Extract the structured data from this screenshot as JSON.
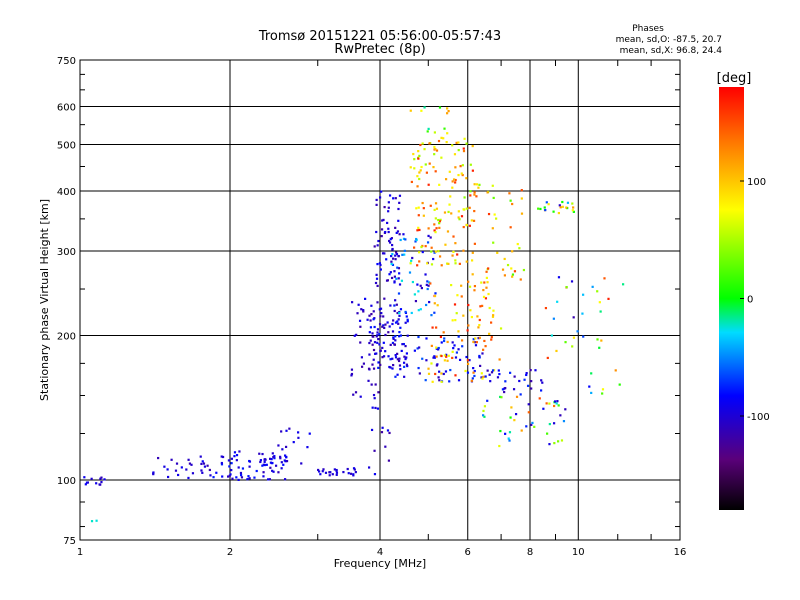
{
  "chart_data": {
    "type": "scatter",
    "title": "Tromsø 20151221 05:56:00-05:57:43",
    "subtitle": "RwPretec (8p)",
    "xlabel": "Frequency [MHz]",
    "ylabel": "Stationary phase Virtual Height [km]",
    "x_scale": "log",
    "y_scale": "log",
    "xlim": [
      1,
      16
    ],
    "ylim": [
      75,
      750
    ],
    "x_ticks": [
      1,
      2,
      4,
      6,
      8,
      10,
      16
    ],
    "y_ticks": [
      75,
      100,
      200,
      300,
      400,
      500,
      600,
      750
    ],
    "grid": true,
    "stats": {
      "heading": "Phases",
      "line_o": "mean, sd,O: -87.5, 20.7",
      "line_x": "mean, sd,X:  96.8, 24.4"
    },
    "colorbar": {
      "label": "[deg]",
      "range": [
        -180,
        180
      ],
      "ticks": [
        100,
        0,
        -100
      ],
      "tick_labels": [
        "100",
        "0",
        "-100"
      ]
    },
    "clusters": [
      {
        "f": [
          1.0,
          1.12
        ],
        "h": [
          97,
          102
        ],
        "phase": [
          -115,
          -80
        ],
        "n": 12
      },
      {
        "f": [
          1.05,
          1.08
        ],
        "h": [
          80,
          85
        ],
        "phase": [
          -40,
          -20
        ],
        "n": 2
      },
      {
        "f": [
          1.4,
          1.85
        ],
        "h": [
          100,
          112
        ],
        "phase": [
          -115,
          -85
        ],
        "n": 28
      },
      {
        "f": [
          1.85,
          2.6
        ],
        "h": [
          100,
          115
        ],
        "phase": [
          -115,
          -75
        ],
        "n": 70
      },
      {
        "f": [
          2.4,
          2.9
        ],
        "h": [
          108,
          130
        ],
        "phase": [
          -110,
          -80
        ],
        "n": 20
      },
      {
        "f": [
          3.0,
          3.6
        ],
        "h": [
          102,
          106
        ],
        "phase": [
          -110,
          -90
        ],
        "n": 24
      },
      {
        "f": [
          3.5,
          4.0
        ],
        "h": [
          140,
          240
        ],
        "phase": [
          -120,
          -85
        ],
        "n": 45
      },
      {
        "f": [
          3.8,
          4.6
        ],
        "h": [
          170,
          230
        ],
        "phase": [
          -120,
          -75
        ],
        "n": 90
      },
      {
        "f": [
          3.9,
          4.4
        ],
        "h": [
          230,
          400
        ],
        "phase": [
          -120,
          -80
        ],
        "n": 70
      },
      {
        "f": [
          4.2,
          5.2
        ],
        "h": [
          220,
          330
        ],
        "phase": [
          -115,
          -20
        ],
        "n": 60
      },
      {
        "f": [
          4.6,
          6.2
        ],
        "h": [
          280,
          520
        ],
        "phase": [
          40,
          170
        ],
        "n": 140
      },
      {
        "f": [
          4.2,
          6.5
        ],
        "h": [
          160,
          200
        ],
        "phase": [
          -115,
          -60
        ],
        "n": 70
      },
      {
        "f": [
          5.0,
          7.0
        ],
        "h": [
          160,
          260
        ],
        "phase": [
          60,
          170
        ],
        "n": 90
      },
      {
        "f": [
          6.0,
          7.8
        ],
        "h": [
          260,
          420
        ],
        "phase": [
          20,
          160
        ],
        "n": 45
      },
      {
        "f": [
          6.5,
          8.5
        ],
        "h": [
          150,
          170
        ],
        "phase": [
          -120,
          -70
        ],
        "n": 30
      },
      {
        "f": [
          8.2,
          9.8
        ],
        "h": [
          360,
          380
        ],
        "phase": [
          -120,
          120
        ],
        "n": 20
      },
      {
        "f": [
          6.2,
          9.5
        ],
        "h": [
          115,
          150
        ],
        "phase": [
          -120,
          160
        ],
        "n": 45
      },
      {
        "f": [
          8.5,
          12.5
        ],
        "h": [
          150,
          270
        ],
        "phase": [
          -120,
          170
        ],
        "n": 35
      },
      {
        "f": [
          3.8,
          4.2
        ],
        "h": [
          100,
          130
        ],
        "phase": [
          -120,
          -85
        ],
        "n": 10
      },
      {
        "f": [
          4.5,
          5.5
        ],
        "h": [
          520,
          600
        ],
        "phase": [
          -20,
          160
        ],
        "n": 12
      }
    ]
  }
}
